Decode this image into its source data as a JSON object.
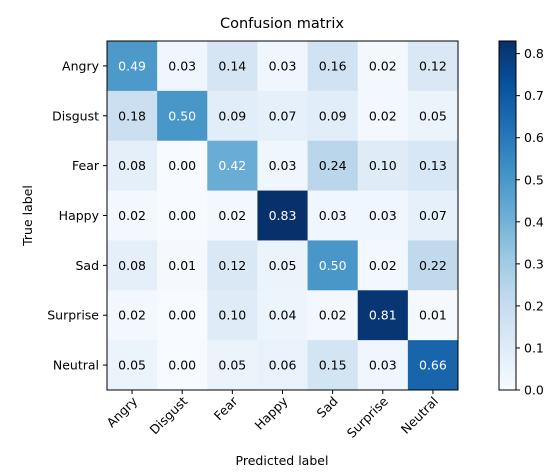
{
  "chart_data": {
    "type": "heatmap",
    "title": "Confusion matrix",
    "xlabel": "Predicted label",
    "ylabel": "True label",
    "x_categories": [
      "Angry",
      "Disgust",
      "Fear",
      "Happy",
      "Sad",
      "Surprise",
      "Neutral"
    ],
    "y_categories": [
      "Angry",
      "Disgust",
      "Fear",
      "Happy",
      "Sad",
      "Surprise",
      "Neutral"
    ],
    "values": [
      [
        0.49,
        0.03,
        0.14,
        0.03,
        0.16,
        0.02,
        0.12
      ],
      [
        0.18,
        0.5,
        0.09,
        0.07,
        0.09,
        0.02,
        0.05
      ],
      [
        0.08,
        0.0,
        0.42,
        0.03,
        0.24,
        0.1,
        0.13
      ],
      [
        0.02,
        0.0,
        0.02,
        0.83,
        0.03,
        0.03,
        0.07
      ],
      [
        0.08,
        0.01,
        0.12,
        0.05,
        0.5,
        0.02,
        0.22
      ],
      [
        0.02,
        0.0,
        0.1,
        0.04,
        0.02,
        0.81,
        0.01
      ],
      [
        0.05,
        0.0,
        0.05,
        0.06,
        0.15,
        0.03,
        0.66
      ]
    ],
    "colormap": "Blues",
    "color_range": [
      0.0,
      0.83
    ],
    "colorbar_ticks": [
      "0.0",
      "0.1",
      "0.2",
      "0.3",
      "0.4",
      "0.5",
      "0.6",
      "0.7",
      "0.8"
    ],
    "grid": false
  }
}
